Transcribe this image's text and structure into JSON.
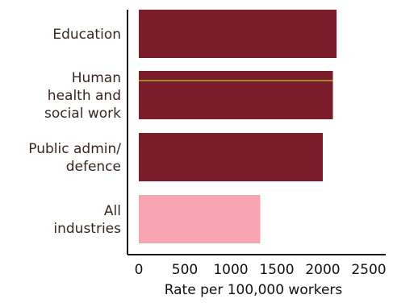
{
  "chart_data": {
    "type": "bar",
    "orientation": "horizontal",
    "categories": [
      "Education",
      "Human health and social work",
      "Public admin/ defence",
      "All industries"
    ],
    "category_label_lines": [
      [
        "Education"
      ],
      [
        "Human",
        "health and",
        "social work"
      ],
      [
        "Public admin/",
        "defence"
      ],
      [
        "All",
        "industries"
      ]
    ],
    "values": [
      2150,
      2110,
      2000,
      1320
    ],
    "bar_colors": [
      "#7a1c2a",
      "#7a1c2a",
      "#7a1c2a",
      "#f7a5b3"
    ],
    "highlight_line_color": "#9c8a24",
    "axis_color": "#1a1a1a",
    "xlabel": "Rate per 100,000 workers",
    "xticks": [
      0,
      500,
      1000,
      1500,
      2000,
      2500
    ],
    "xlim": [
      0,
      2500
    ]
  }
}
